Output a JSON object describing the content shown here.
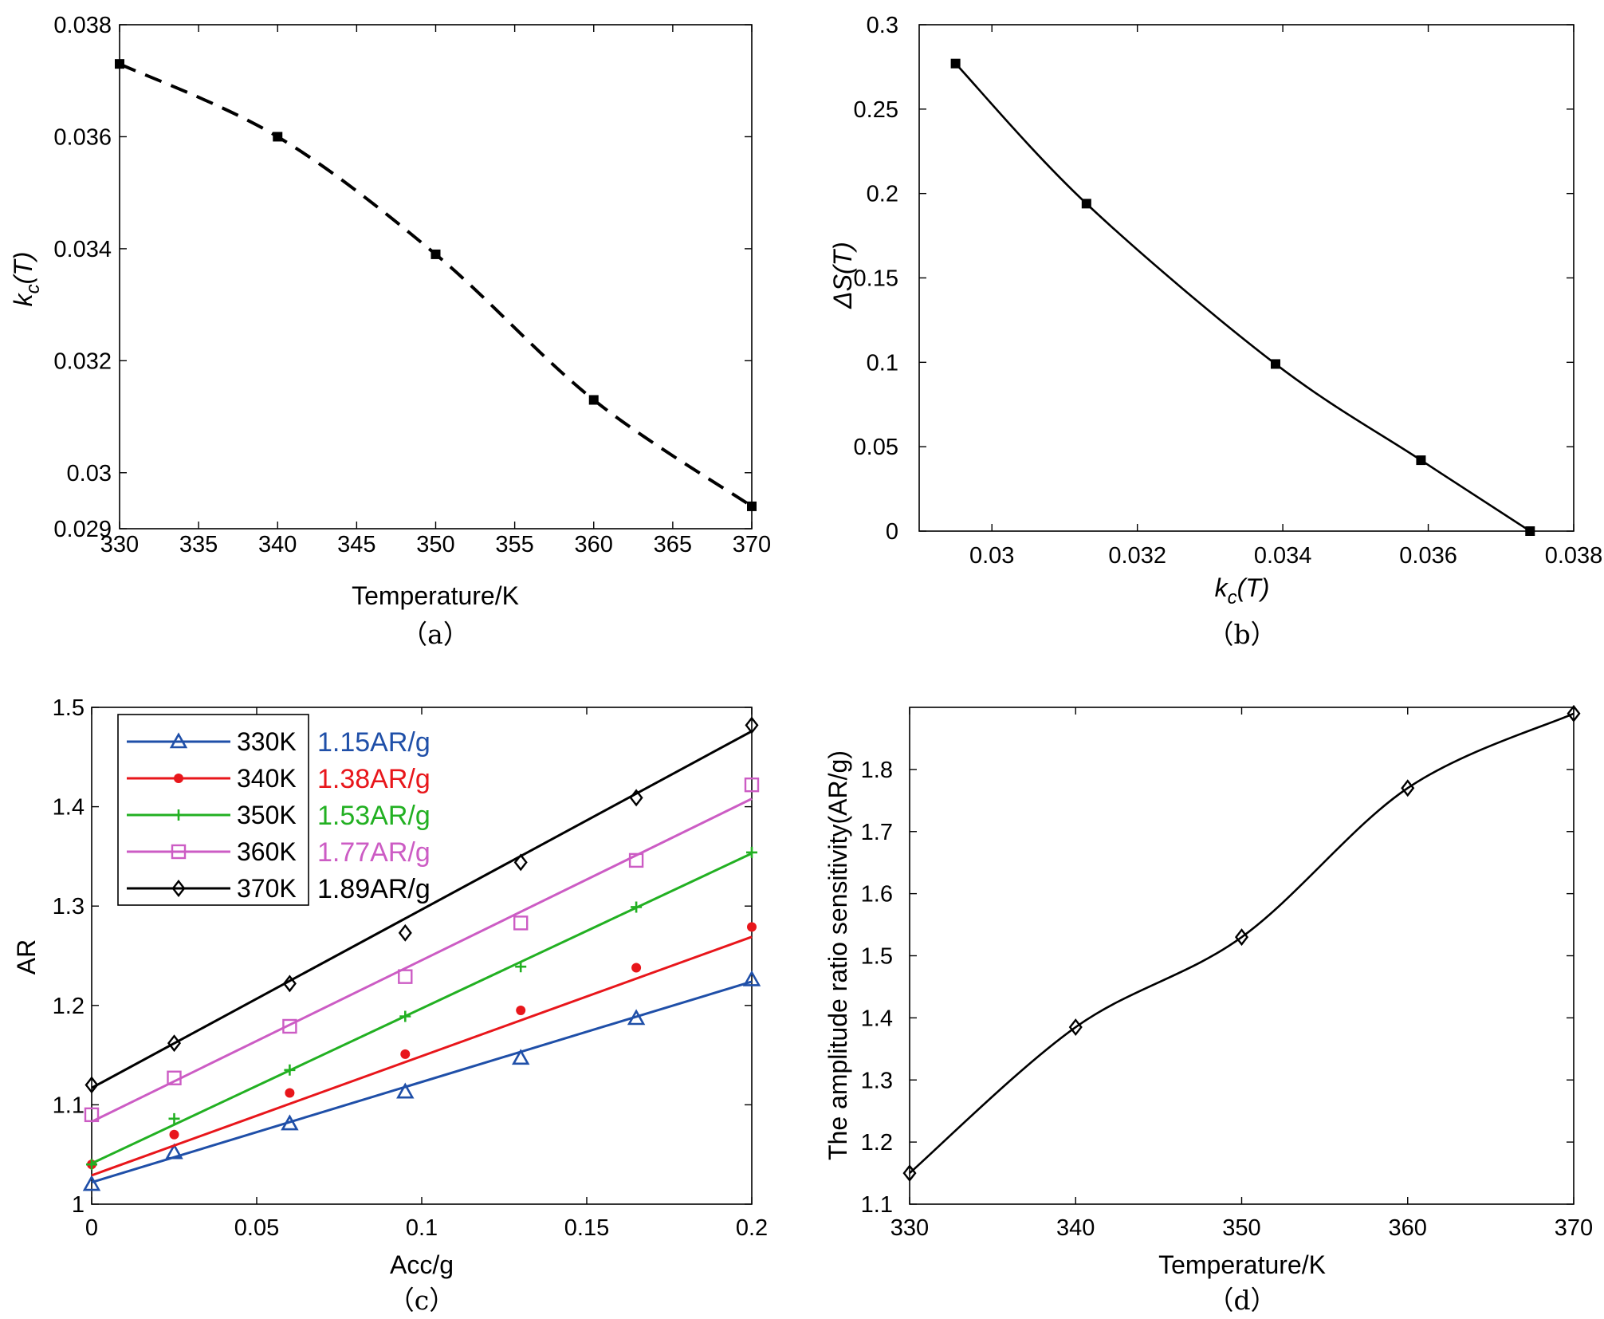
{
  "chart_data": [
    {
      "id": "a",
      "type": "line",
      "caption": "（a）",
      "xlabel": "Temperature/K",
      "ylabel_main": "k",
      "ylabel_sub": "c",
      "ylabel_tail": "(T)",
      "xlim": [
        330,
        370
      ],
      "ylim": [
        0.029,
        0.038
      ],
      "xticks": [
        330,
        335,
        340,
        345,
        350,
        355,
        360,
        365,
        370
      ],
      "xtick_labels": [
        "330",
        "335",
        "340",
        "345",
        "350",
        "355",
        "360",
        "365",
        "370"
      ],
      "yticks": [
        0.029,
        0.03,
        0.032,
        0.034,
        0.036,
        0.038
      ],
      "ytick_labels": [
        "0.029",
        "0.03",
        "0.032",
        "0.034",
        "0.036",
        "0.038"
      ],
      "x": [
        330,
        340,
        350,
        360,
        370
      ],
      "y": [
        0.0373,
        0.036,
        0.0339,
        0.0313,
        0.0294
      ],
      "line_style": "dashed",
      "marker": "filled-square"
    },
    {
      "id": "b",
      "type": "line",
      "caption": "（b）",
      "xlabel_main": "k",
      "xlabel_sub": "c",
      "xlabel_tail": "(T)",
      "ylabel": "ΔS(T)",
      "xlim": [
        0.029,
        0.038
      ],
      "ylim": [
        0,
        0.3
      ],
      "xticks": [
        0.03,
        0.032,
        0.034,
        0.036,
        0.038
      ],
      "xtick_labels": [
        "0.03",
        "0.032",
        "0.034",
        "0.036",
        "0.038"
      ],
      "yticks": [
        0,
        0.05,
        0.1,
        0.15,
        0.2,
        0.25,
        0.3
      ],
      "ytick_labels": [
        "0",
        "0.05",
        "0.1",
        "0.15",
        "0.2",
        "0.25",
        "0.3"
      ],
      "x": [
        0.0295,
        0.0313,
        0.0339,
        0.0359,
        0.0374
      ],
      "y": [
        0.277,
        0.194,
        0.099,
        0.042,
        0.0
      ],
      "line_style": "solid",
      "marker": "filled-square"
    },
    {
      "id": "c",
      "type": "scatter",
      "caption": "（c）",
      "xlabel": "Acc/g",
      "ylabel": "AR",
      "xlim": [
        0,
        0.2
      ],
      "ylim": [
        1,
        1.5
      ],
      "xticks": [
        0,
        0.05,
        0.1,
        0.15,
        0.2
      ],
      "xtick_labels": [
        "0",
        "0.05",
        "0.1",
        "0.15",
        "0.2"
      ],
      "yticks": [
        1,
        1.1,
        1.2,
        1.3,
        1.4,
        1.5
      ],
      "ytick_labels": [
        "1",
        "1.1",
        "1.2",
        "1.3",
        "1.4",
        "1.5"
      ],
      "x": [
        0,
        0.025,
        0.06,
        0.095,
        0.13,
        0.165,
        0.2
      ],
      "legend_position": "top-left",
      "series": [
        {
          "name": "330K",
          "sensitivity": "1.15AR/g",
          "color": "#1f4fa8",
          "marker": "triangle",
          "values": [
            1.02,
            1.052,
            1.081,
            1.113,
            1.147,
            1.187,
            1.226
          ],
          "fit": [
            1.022,
            1.224
          ]
        },
        {
          "name": "340K",
          "sensitivity": "1.38AR/g",
          "color": "#e8161b",
          "marker": "dot",
          "values": [
            1.04,
            1.07,
            1.112,
            1.151,
            1.195,
            1.238,
            1.279
          ],
          "fit": [
            1.029,
            1.269
          ]
        },
        {
          "name": "350K",
          "sensitivity": "1.53AR/g",
          "color": "#22b022",
          "marker": "plus",
          "values": [
            1.04,
            1.086,
            1.135,
            1.189,
            1.239,
            1.299,
            1.354
          ],
          "fit": [
            1.041,
            1.353
          ]
        },
        {
          "name": "360K",
          "sensitivity": "1.77AR/g",
          "color": "#cc5cc4",
          "marker": "square",
          "values": [
            1.09,
            1.127,
            1.179,
            1.229,
            1.283,
            1.346,
            1.422
          ],
          "fit": [
            1.083,
            1.408
          ]
        },
        {
          "name": "370K",
          "sensitivity": "1.89AR/g",
          "color": "#000000",
          "marker": "diamond",
          "values": [
            1.12,
            1.162,
            1.222,
            1.273,
            1.344,
            1.409,
            1.482
          ],
          "fit": [
            1.117,
            1.476
          ]
        }
      ]
    },
    {
      "id": "d",
      "type": "line",
      "caption": "（d）",
      "xlabel": "Temperature/K",
      "ylabel": "The amplitude ratio sensitivity(AR/g)",
      "xlim": [
        330,
        370
      ],
      "ylim": [
        1.1,
        1.9
      ],
      "xticks": [
        330,
        340,
        350,
        360,
        370
      ],
      "xtick_labels": [
        "330",
        "340",
        "350",
        "360",
        "370"
      ],
      "yticks": [
        1.1,
        1.2,
        1.3,
        1.4,
        1.5,
        1.6,
        1.7,
        1.8
      ],
      "ytick_labels": [
        "1.1",
        "1.2",
        "1.3",
        "1.4",
        "1.5",
        "1.6",
        "1.7",
        "1.8"
      ],
      "x": [
        330,
        340,
        350,
        360,
        370
      ],
      "y": [
        1.15,
        1.385,
        1.53,
        1.77,
        1.89
      ],
      "line_style": "solid",
      "marker": "diamond"
    }
  ]
}
